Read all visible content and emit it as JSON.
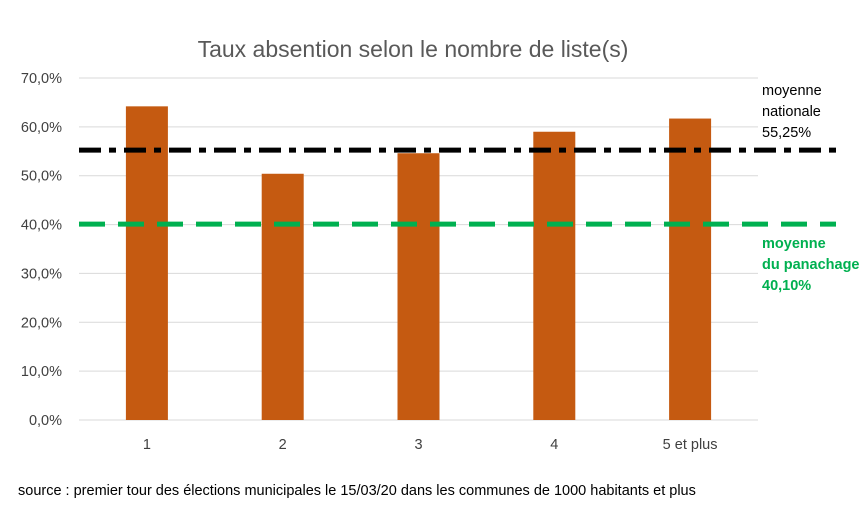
{
  "chart_data": {
    "type": "bar",
    "title": "Taux absention selon le nombre de liste(s)",
    "categories": [
      "1",
      "2",
      "3",
      "4",
      "5 et plus"
    ],
    "values": [
      64.2,
      50.4,
      54.6,
      59.0,
      61.7
    ],
    "ylim": [
      0,
      70
    ],
    "yticks": [
      0,
      10,
      20,
      30,
      40,
      50,
      60,
      70
    ],
    "ytick_labels": [
      "0,0%",
      "10,0%",
      "20,0%",
      "30,0%",
      "40,0%",
      "50,0%",
      "60,0%",
      "70,0%"
    ],
    "bar_color": "#c55a11",
    "grid": true,
    "reference_lines": [
      {
        "value": 55.25,
        "color": "#000000",
        "style": "dash-dot",
        "label_lines": [
          "moyenne",
          "nationale",
          "55,25%"
        ]
      },
      {
        "value": 40.1,
        "color": "#00b050",
        "style": "dashed",
        "label_lines": [
          "moyenne",
          "du panachage",
          "40,10%"
        ]
      }
    ]
  },
  "source_text": "source : premier tour des élections municipales le 15/03/20 dans les communes de 1000 habitants et plus"
}
